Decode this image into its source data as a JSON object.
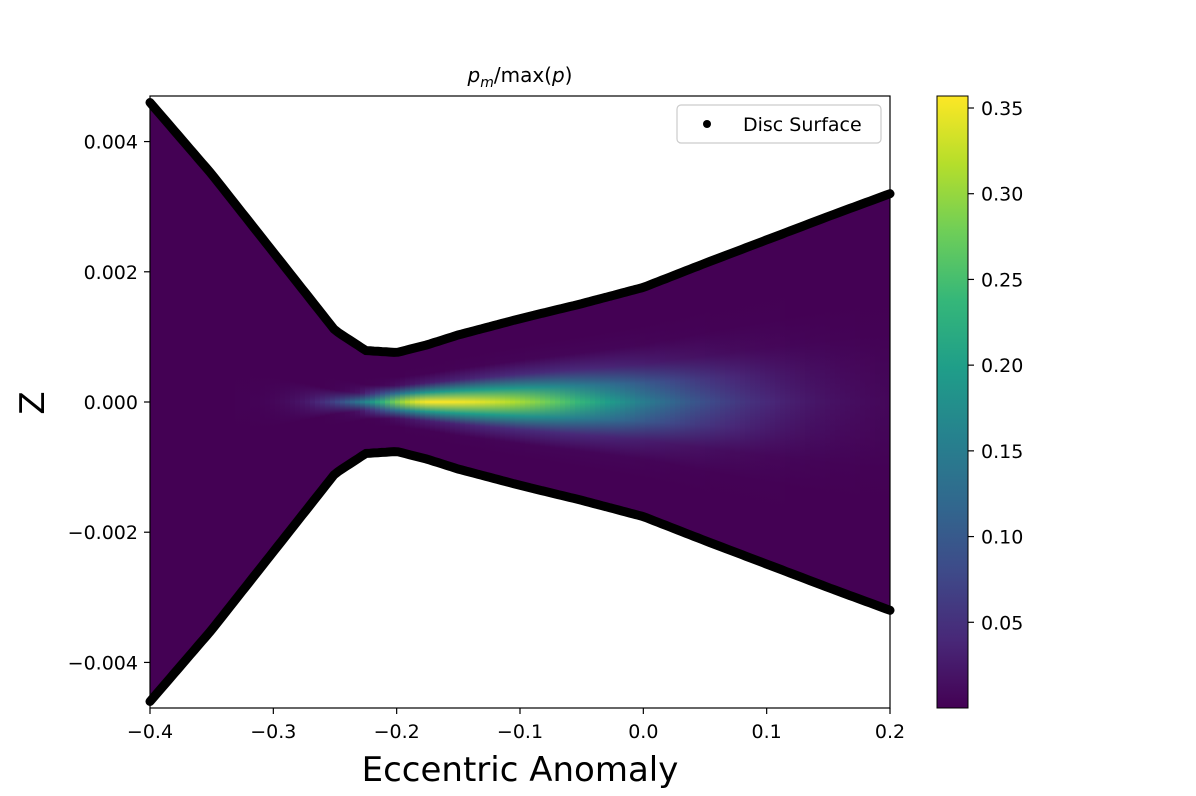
{
  "chart_data": {
    "type": "heatmap",
    "title_main": "p",
    "title_sub": "m",
    "title_rest": "/max(",
    "title_var": "p",
    "title_close": ")",
    "xlabel": "Eccentric Anomaly",
    "ylabel": "Z",
    "xlim": [
      -0.4,
      0.2
    ],
    "ylim": [
      -0.0047,
      0.0047
    ],
    "x_ticks": [
      -0.4,
      -0.3,
      -0.2,
      -0.1,
      0.0,
      0.1,
      0.2
    ],
    "x_tick_labels": [
      "−0.4",
      "−0.3",
      "−0.2",
      "−0.1",
      "0.0",
      "0.1",
      "0.2"
    ],
    "y_ticks": [
      0.004,
      0.002,
      0.0,
      -0.002,
      -0.004
    ],
    "y_tick_labels": [
      "0.004",
      "0.002",
      "0.000",
      "−0.002",
      "−0.004"
    ],
    "colorbar": {
      "colormap": "viridis",
      "range": [
        0.0,
        0.357
      ],
      "ticks": [
        0.35,
        0.3,
        0.25,
        0.2,
        0.15,
        0.1,
        0.05
      ],
      "tick_labels": [
        "0.35",
        "0.30",
        "0.25",
        "0.20",
        "0.15",
        "0.10",
        "0.05"
      ]
    },
    "legend": {
      "placement": "upper-right",
      "entries": [
        {
          "label": "Disc Surface",
          "marker": "dot",
          "color": "#000000"
        }
      ]
    },
    "disc_surface": {
      "x": [
        -0.4,
        -0.35,
        -0.3,
        -0.275,
        -0.25,
        -0.225,
        -0.2,
        -0.175,
        -0.15,
        -0.1,
        -0.05,
        0.0,
        0.05,
        0.1,
        0.15,
        0.2
      ],
      "z": [
        0.0046,
        0.0035,
        0.0023,
        0.0017,
        0.0011,
        0.00079,
        0.00076,
        0.00088,
        0.00103,
        0.00128,
        0.00151,
        0.00176,
        0.00213,
        0.00249,
        0.00285,
        0.0032
      ]
    },
    "peak": {
      "x": -0.17,
      "z": 0.0,
      "value": 0.357
    }
  }
}
